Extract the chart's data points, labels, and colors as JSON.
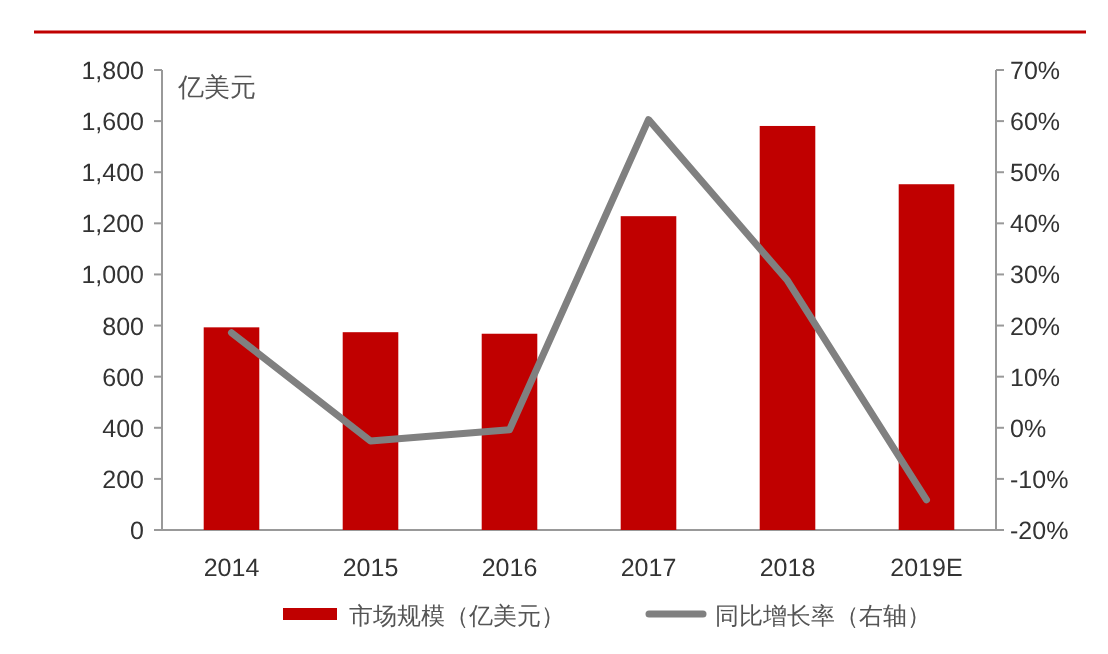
{
  "chart_data": {
    "type": "bar",
    "ylabel": "亿美元",
    "categories": [
      "2014",
      "2015",
      "2016",
      "2017",
      "2018",
      "2019E"
    ],
    "series": [
      {
        "name": "市场规模（亿美元）",
        "type": "bar",
        "color": "#c00000",
        "values": [
          793,
          774,
          768,
          1228,
          1581,
          1353
        ]
      },
      {
        "name": "同比增长率（右轴）",
        "type": "line",
        "axis": "y2",
        "color": "#808080",
        "values": [
          18.6,
          -2.6,
          -0.4,
          60.3,
          28.8,
          -14.1
        ]
      }
    ],
    "ylim": [
      0,
      1800
    ],
    "yticks": [
      {
        "value": 0,
        "label": "0"
      },
      {
        "value": 200,
        "label": "200"
      },
      {
        "value": 400,
        "label": "400"
      },
      {
        "value": 600,
        "label": "600"
      },
      {
        "value": 800,
        "label": "800"
      },
      {
        "value": 1000,
        "label": "1,000"
      },
      {
        "value": 1200,
        "label": "1,200"
      },
      {
        "value": 1400,
        "label": "1,400"
      },
      {
        "value": 1600,
        "label": "1,600"
      },
      {
        "value": 1800,
        "label": "1,800"
      }
    ],
    "y2lim": [
      -20,
      70
    ],
    "y2ticks": [
      {
        "value": -20,
        "label": "-20%"
      },
      {
        "value": -10,
        "label": "-10%"
      },
      {
        "value": 0,
        "label": "0%"
      },
      {
        "value": 10,
        "label": "10%"
      },
      {
        "value": 20,
        "label": "20%"
      },
      {
        "value": 30,
        "label": "30%"
      },
      {
        "value": 40,
        "label": "40%"
      },
      {
        "value": 50,
        "label": "50%"
      },
      {
        "value": 60,
        "label": "60%"
      },
      {
        "value": 70,
        "label": "70%"
      }
    ],
    "legend": "bottom",
    "marker": "none",
    "line_style": "solid"
  }
}
